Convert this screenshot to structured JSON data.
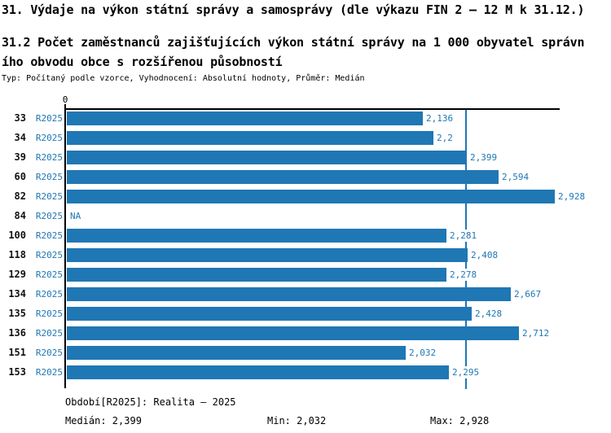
{
  "colors": {
    "bar_blue": "#1f77b4",
    "label_blue": "#1f77b4",
    "axis_black": "#000000"
  },
  "chart_data": {
    "type": "bar",
    "orientation": "horizontal",
    "title": "31. Výdaje na výkon státní správy a samosprávy (dle výkazu FIN 2 – 12 M k 31.12.)",
    "subtitle": "31.2 Počet zaměstnanců zajišťujících výkon státní správy na 1 000 obyvatel správního obvodu obce s rozšířenou působností",
    "meta": "Typ: Počítaný podle vzorce, Vyhodnocení: Absolutní hodnoty, Průměr: Medián",
    "categories": [
      "33",
      "34",
      "39",
      "60",
      "82",
      "84",
      "100",
      "118",
      "129",
      "134",
      "135",
      "136",
      "151",
      "153"
    ],
    "series": [
      {
        "name": "R2025",
        "values": [
          2.136,
          2.2,
          2.399,
          2.594,
          2.928,
          null,
          2.281,
          2.408,
          2.278,
          2.667,
          2.428,
          2.712,
          2.032,
          2.295
        ]
      }
    ],
    "rows": [
      {
        "category": "33",
        "period": "R2025",
        "value": 2.136,
        "label": "2,136"
      },
      {
        "category": "34",
        "period": "R2025",
        "value": 2.2,
        "label": "2,2"
      },
      {
        "category": "39",
        "period": "R2025",
        "value": 2.399,
        "label": "2,399"
      },
      {
        "category": "60",
        "period": "R2025",
        "value": 2.594,
        "label": "2,594"
      },
      {
        "category": "82",
        "period": "R2025",
        "value": 2.928,
        "label": "2,928"
      },
      {
        "category": "84",
        "period": "R2025",
        "value": null,
        "label": "NA"
      },
      {
        "category": "100",
        "period": "R2025",
        "value": 2.281,
        "label": "2,281"
      },
      {
        "category": "118",
        "period": "R2025",
        "value": 2.408,
        "label": "2,408"
      },
      {
        "category": "129",
        "period": "R2025",
        "value": 2.278,
        "label": "2,278"
      },
      {
        "category": "134",
        "period": "R2025",
        "value": 2.667,
        "label": "2,667"
      },
      {
        "category": "135",
        "period": "R2025",
        "value": 2.428,
        "label": "2,428"
      },
      {
        "category": "136",
        "period": "R2025",
        "value": 2.712,
        "label": "2,712"
      },
      {
        "category": "151",
        "period": "R2025",
        "value": 2.032,
        "label": "2,032"
      },
      {
        "category": "153",
        "period": "R2025",
        "value": 2.295,
        "label": "2,295"
      }
    ],
    "x_axis_ticks": [
      "0"
    ],
    "xlim": [
      0,
      2.97
    ],
    "median": 2.399,
    "grid": false,
    "legend_position": "bottom"
  },
  "footer": {
    "period_legend": "Období[R2025]: Realita – 2025",
    "median": "Medián: 2,399",
    "min": "Min: 2,032",
    "max": "Max: 2,928"
  }
}
